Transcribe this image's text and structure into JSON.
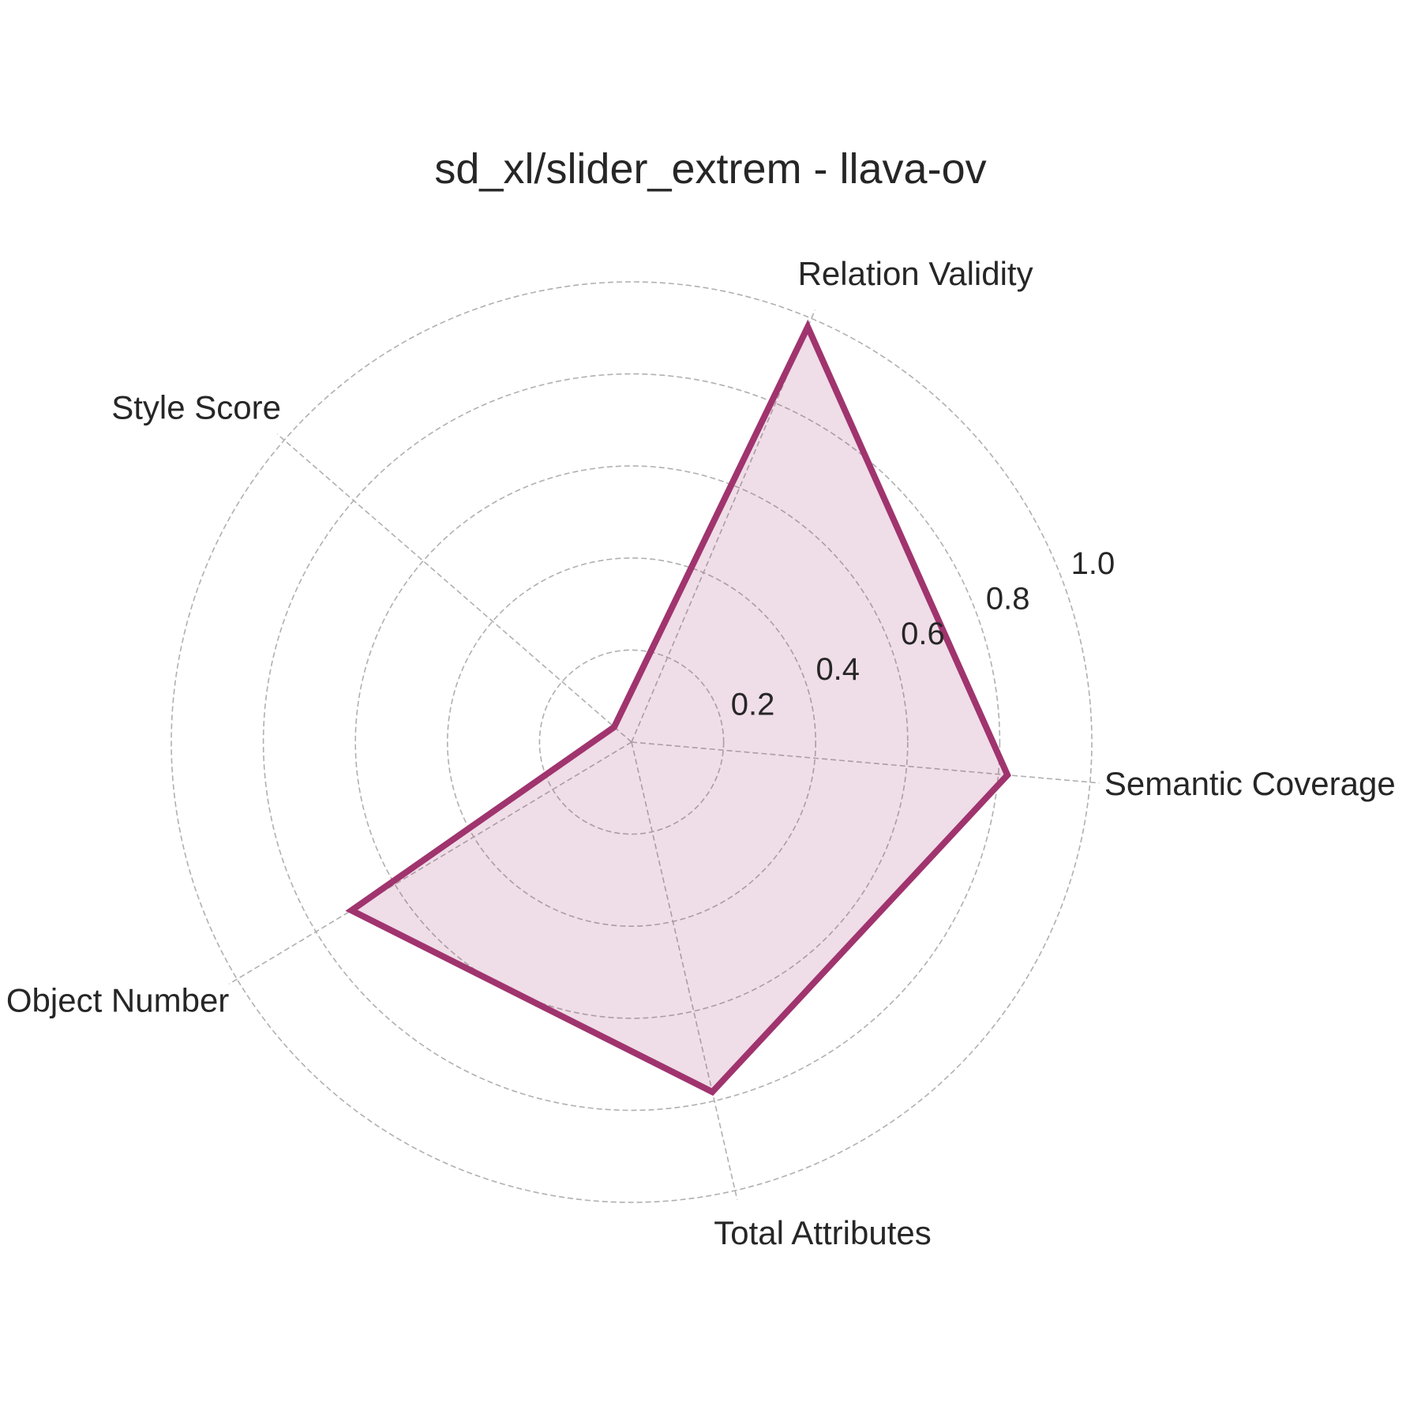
{
  "chart_data": {
    "type": "radar",
    "title": "sd_xl/slider_extrem - llava-ov",
    "categories": [
      "Semantic Coverage",
      "Relation Validity",
      "Style Score",
      "Object Number",
      "Total Attributes"
    ],
    "series": [
      {
        "values": [
          0.82,
          0.98,
          0.05,
          0.71,
          0.78
        ],
        "color": "#A0346E",
        "fill_color": "#A0346E",
        "fill_opacity": 0.17
      }
    ],
    "rlim": [
      0,
      1.0
    ],
    "rticks": [
      0.2,
      0.4,
      0.6,
      0.8,
      1.0
    ],
    "rtick_labels": [
      "0.2",
      "0.4",
      "0.6",
      "0.8",
      "1.0"
    ],
    "grid": true,
    "grid_color": "#b0b0b0"
  }
}
